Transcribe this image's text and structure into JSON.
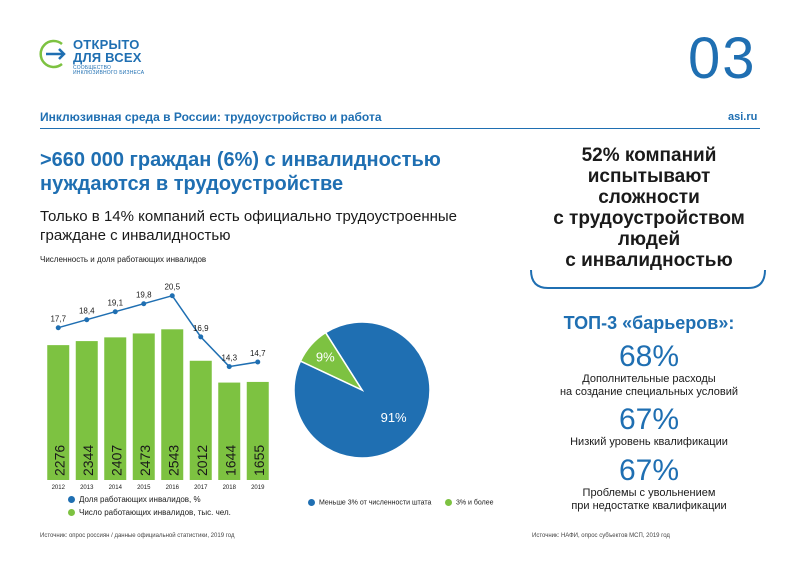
{
  "brand": {
    "line1": "ОТКРЫТО",
    "line2": "ДЛЯ ВСЕХ",
    "tagline1": "СООБЩЕСТВО",
    "tagline2": "ИНКЛЮЗИВНОГО БИЗНЕСА",
    "color": "#1f6fb2",
    "accent": "#7dc241"
  },
  "page_number": "03",
  "section_title": "Инклюзивная среда в России: трудоустройство и работа",
  "site": "asi.ru",
  "headline": ">660 000 граждан (6%) с инвалидностью нуждаются в трудоустройстве",
  "headline_l1": ">660 000 граждан (6%) с инвалидностью",
  "headline_l2": "нуждаются в трудоустройстве",
  "subhead_l1": "Только в 14% компаний есть официально трудоустроенные",
  "subhead_l2": "граждане с инвалидностью",
  "chart_data": [
    {
      "type": "bar",
      "title": "Численность и доля работающих инвалидов",
      "categories": [
        "2012",
        "2013",
        "2014",
        "2015",
        "2016",
        "2017",
        "2018",
        "2019"
      ],
      "series": [
        {
          "name": "Число работающих инвалидов, тыс. чел.",
          "type": "bar",
          "color": "#7dc241",
          "values": [
            2276,
            2344,
            2407,
            2473,
            2543,
            2012,
            1644,
            1655
          ]
        },
        {
          "name": "Доля работающих инвалидов, %",
          "type": "line",
          "color": "#1f6fb2",
          "values": [
            17.7,
            18.4,
            19.1,
            19.8,
            20.5,
            16.9,
            14.3,
            14.7
          ],
          "labels": [
            "17,7",
            "18,4",
            "19,1",
            "19,8",
            "20,5",
            "16,9",
            "14,3",
            "14,7"
          ]
        }
      ],
      "legend": "bottom",
      "grid": false
    },
    {
      "type": "pie",
      "slices": [
        {
          "name": "Меньше 3% от численности штата",
          "value": 91,
          "label": "91%",
          "color": "#1f6fb2"
        },
        {
          "name": "3% и более",
          "value": 9,
          "label": "9%",
          "color": "#7dc241"
        }
      ],
      "legend": "bottom"
    }
  ],
  "source_left": "Источник: опрос россиян / данные официальной статистики, 2019 год",
  "source_right": "Источник: НАФИ, опрос субъектов МСП, 2019 год",
  "right_panel": {
    "lines": [
      "52% компаний",
      "испытывают",
      "сложности",
      "с трудоустройством",
      "людей",
      "с инвалидностью"
    ],
    "top3_title": "ТОП-3 «барьеров»:",
    "barriers": [
      {
        "pct": "68%",
        "l1": "Дополнительные расходы",
        "l2": "на создание специальных условий"
      },
      {
        "pct": "67%",
        "l1": "Низкий уровень квалификации",
        "l2": ""
      },
      {
        "pct": "67%",
        "l1": "Проблемы с увольнением",
        "l2": "при недостатке квалификации"
      }
    ]
  }
}
